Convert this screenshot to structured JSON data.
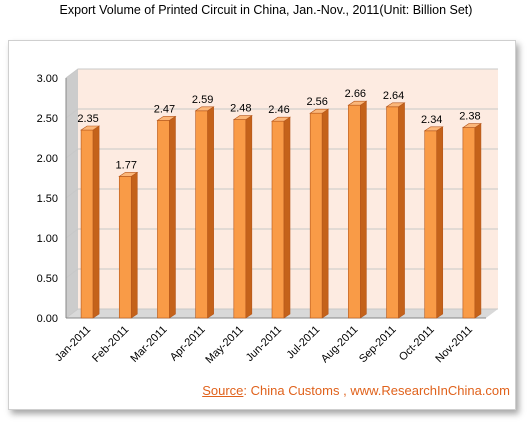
{
  "chart_data": {
    "type": "bar",
    "title": "Export Volume of Printed Circuit  in China, Jan.-Nov.,  2011(Unit:  Billion Set)",
    "categories": [
      "Jan-2011",
      "Feb-2011",
      "Mar-2011",
      "Apr-2011",
      "May-2011",
      "Jun-2011",
      "Jul-2011",
      "Aug-2011",
      "Sep-2011",
      "Oct-2011",
      "Nov-2011"
    ],
    "values": [
      2.35,
      1.77,
      2.47,
      2.59,
      2.48,
      2.46,
      2.56,
      2.66,
      2.64,
      2.34,
      2.38
    ],
    "value_labels": [
      "2.35",
      "1.77",
      "2.47",
      "2.59",
      "2.48",
      "2.46",
      "2.56",
      "2.66",
      "2.64",
      "2.34",
      "2.38"
    ],
    "ylim": [
      0,
      3.0
    ],
    "yticks": [
      "0.00",
      "0.50",
      "1.00",
      "1.50",
      "2.00",
      "2.50",
      "3.00"
    ],
    "grid": true,
    "colors": {
      "bar_front": "#f99b47",
      "bar_side": "#c4621a",
      "bar_top": "#fbb77a",
      "bar_edge": "#b5561a",
      "plot_bg": "#fdebe1",
      "floor": "#d9d9d9",
      "wall_side": "#cccccc",
      "grid": "#c8c8c8"
    }
  },
  "source": {
    "label": "Source",
    "text": ": China Customs , www.ResearchInChina.com"
  }
}
